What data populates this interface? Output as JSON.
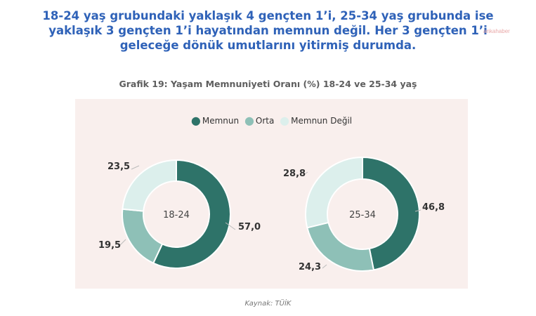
{
  "headline": {
    "line1": "18-24 yaş grubundaki yaklaşık 4 gençten 1’i, 25-34 yaş grubunda ise",
    "line2": "yaklaşık 3 gençten 1’i hayatından memnun değil. Her 3 gençten 1’i",
    "line3": "geleceğe dönük umutlarını yitirmiş durumda."
  },
  "watermark": "ankahaber",
  "source": "Kaynak: TÜİK",
  "colors": {
    "memnun": "#2e7369",
    "orta": "#8ec0b7",
    "memnun_degil": "#dcefec",
    "panel_bg": "#f9efed",
    "headline": "#2f62b8"
  },
  "chart_data": {
    "type": "donut",
    "title": "Grafik 19: Yaşam Memnuniyeti Oranı (%) 18-24 ve 25-34 yaş",
    "legend": [
      "Memnun",
      "Orta",
      "Memnun Değil"
    ],
    "legend_placement": "top-center",
    "charts": [
      {
        "center_label": "18-24",
        "values": [
          57.0,
          19.5,
          23.5
        ],
        "value_labels": [
          "57,0",
          "19,5",
          "23,5"
        ]
      },
      {
        "center_label": "25-34",
        "values": [
          46.8,
          24.3,
          28.8
        ],
        "value_labels": [
          "46,8",
          "24,3",
          "28,8"
        ]
      }
    ]
  }
}
